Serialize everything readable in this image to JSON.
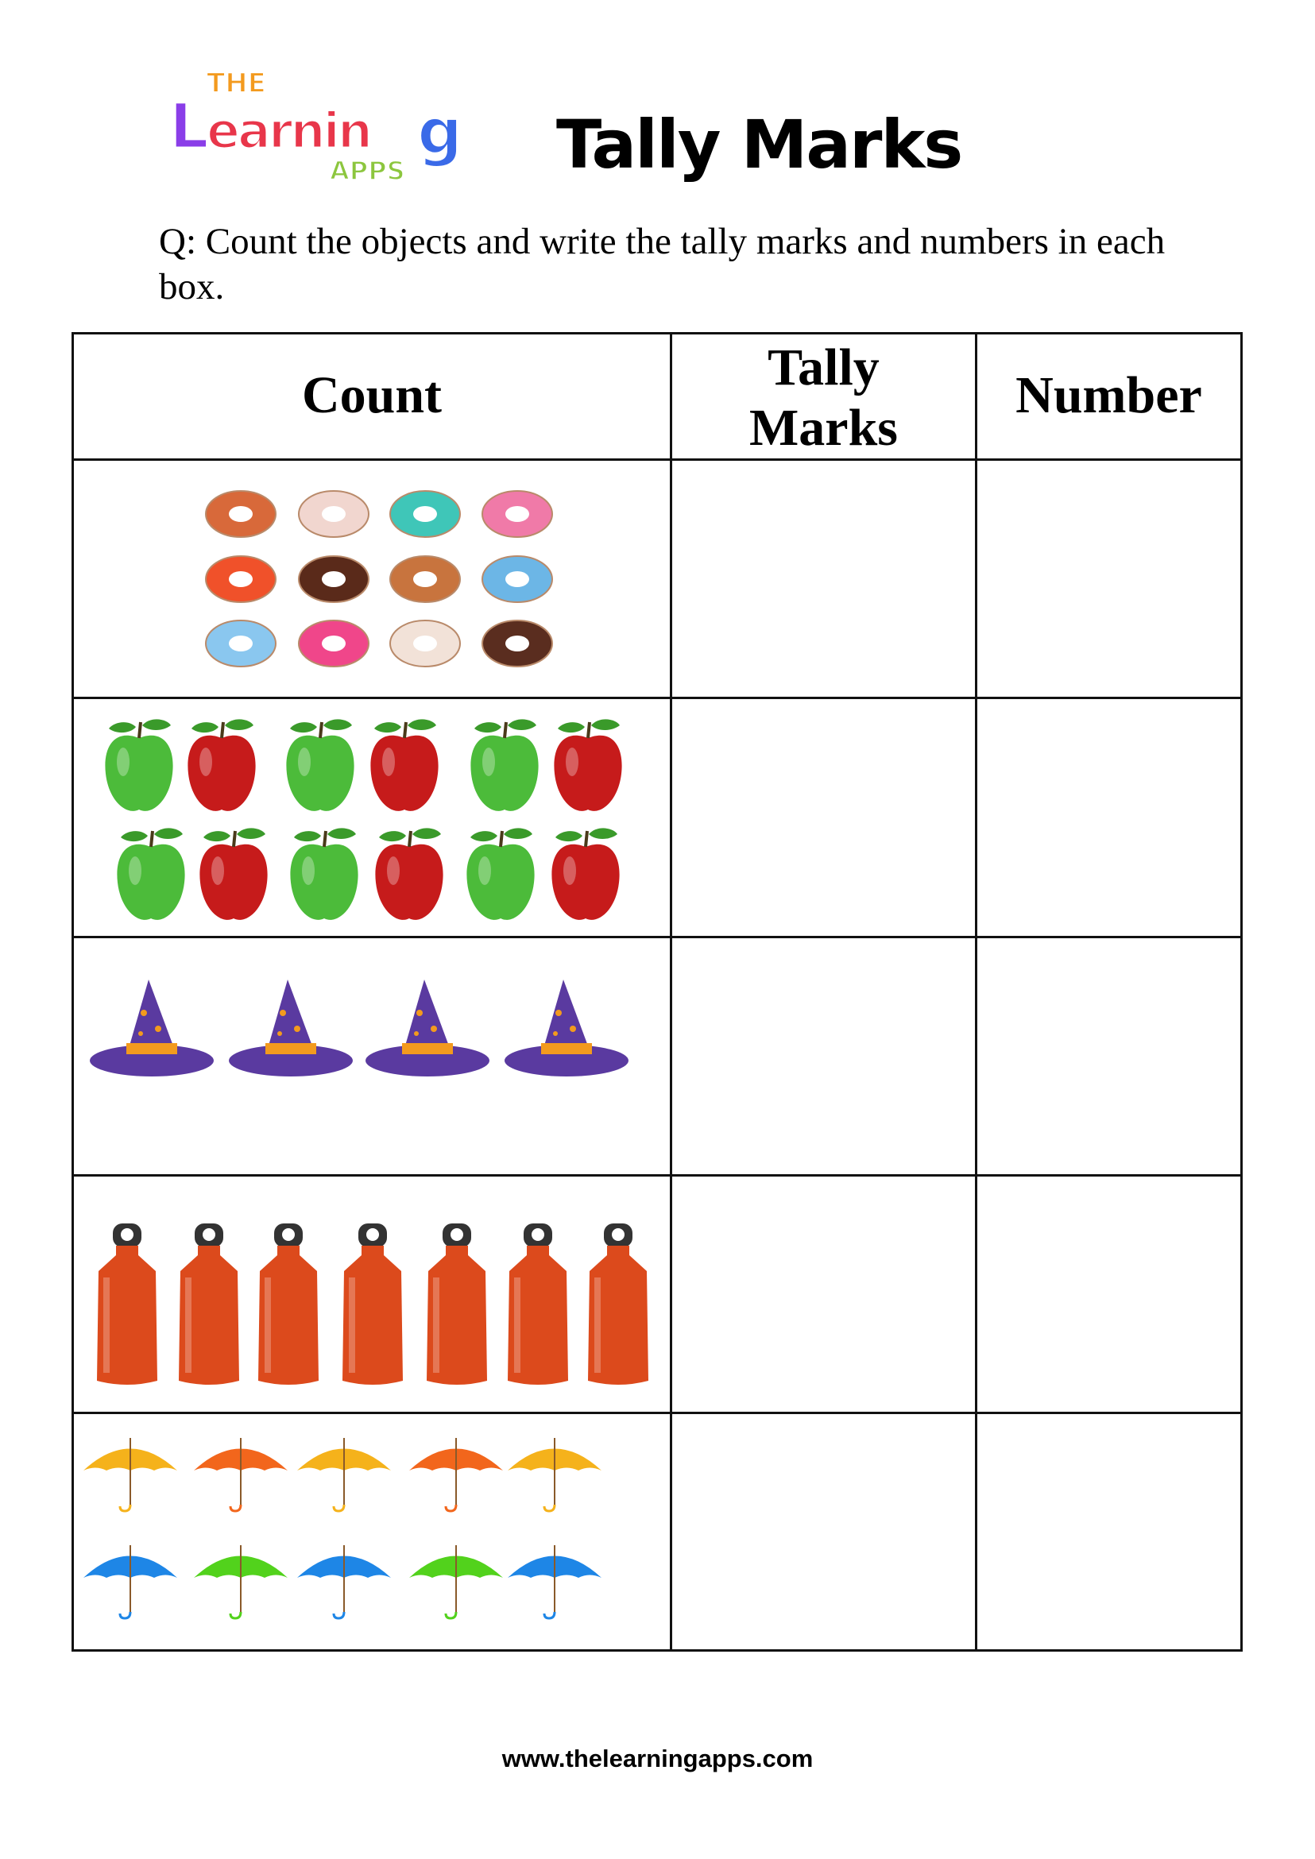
{
  "logo": {
    "text_top": "THE",
    "text_main": "Learning",
    "text_bottom": "APPS"
  },
  "title": "Tally Marks",
  "question": "Q: Count the objects and write the tally marks and numbers in each box.",
  "table": {
    "headers": {
      "count": "Count",
      "tally_line1": "Tally",
      "tally_line2": "Marks",
      "number": "Number"
    },
    "rows": [
      {
        "object": "donut",
        "count": 12,
        "colors": [
          "#d8693a",
          "#f1d6cf",
          "#3fc6b8",
          "#f07aa8",
          "#f0512a",
          "#5a2a1a",
          "#c8743e",
          "#6cb6e6",
          "#8ac7ef",
          "#f0468a",
          "#f2e2d8",
          "#5a2d1f"
        ]
      },
      {
        "object": "apple",
        "count": 12,
        "colors": [
          "#4cbb3a",
          "#c61b1b"
        ]
      },
      {
        "object": "wizard-hat",
        "count": 4,
        "colors": [
          "#5a3aa0",
          "#f39a1e"
        ]
      },
      {
        "object": "water-bottle",
        "count": 7,
        "colors": [
          "#dc4a1c",
          "#333333"
        ]
      },
      {
        "object": "umbrella",
        "count": 10,
        "colors": [
          "#f5b21b",
          "#f2661c",
          "#f5b21b",
          "#f2661c",
          "#f5b21b",
          "#1e86e6",
          "#52d21c",
          "#1e86e6",
          "#52d21c",
          "#1e86e6"
        ]
      }
    ],
    "tally_answers": [
      "",
      "",
      "",
      "",
      ""
    ],
    "number_answers": [
      "",
      "",
      "",
      "",
      ""
    ]
  },
  "footer": "www.thelearningapps.com"
}
